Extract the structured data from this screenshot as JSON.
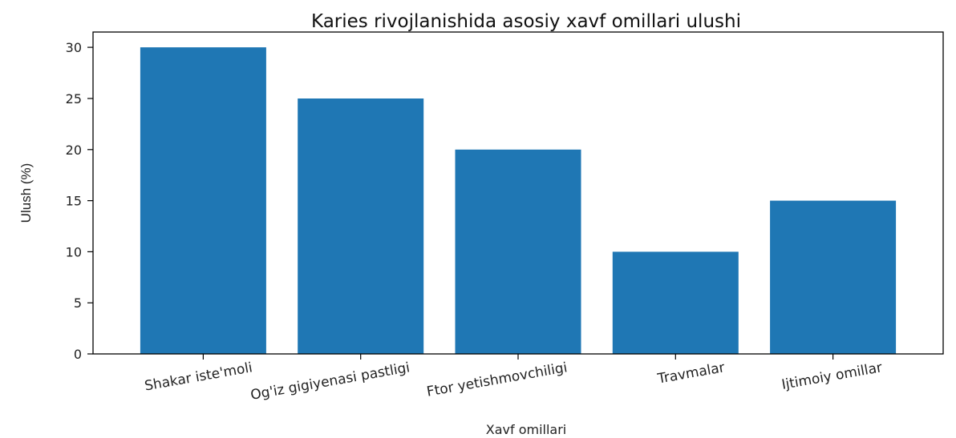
{
  "chart_data": {
    "type": "bar",
    "title": "Karies rivojlanishida asosiy xavf omillari ulushi",
    "xlabel": "Xavf omillari",
    "ylabel": "Ulush (%)",
    "categories": [
      "Shakar iste'moli",
      "Og'iz gigiyenasi pastligi",
      "Ftor yetishmovchiligi",
      "Travmalar",
      "Ijtimoiy omillar"
    ],
    "values": [
      30,
      25,
      20,
      10,
      15
    ],
    "yticks": [
      0,
      5,
      10,
      15,
      20,
      25,
      30
    ],
    "ylim": [
      0,
      31.5
    ],
    "bar_color": "#1f77b4",
    "grid": false,
    "legend": "none"
  }
}
